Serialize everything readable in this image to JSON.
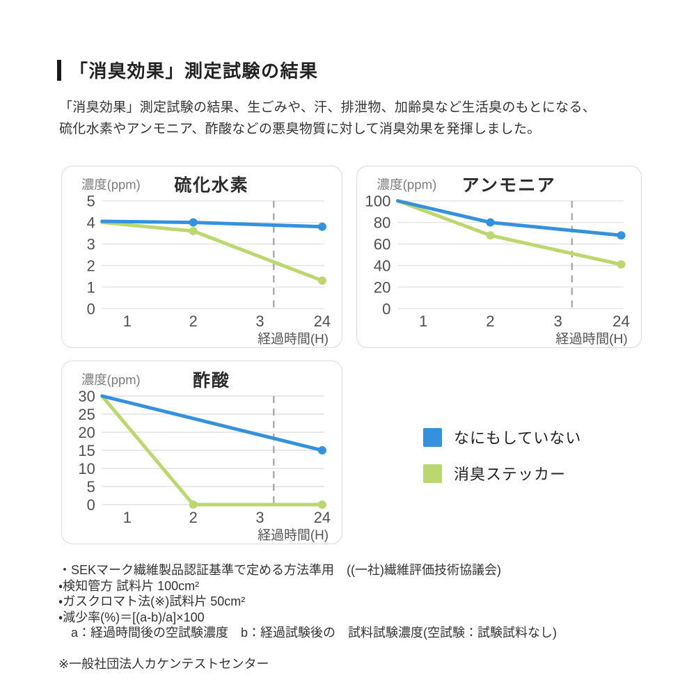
{
  "page": {
    "title": "「消臭効果」測定試験の結果",
    "intro_lines": [
      "「消臭効果」測定試験の結果、生ごみや、汗、排泄物、加齢臭など生活臭のもとになる、",
      "硫化水素やアンモニア、酢酸などの悪臭物質に対して消臭効果を発揮しました。"
    ]
  },
  "colors": {
    "blue": "#3492DC",
    "green": "#BCD76E",
    "grid": "#E2E2E2",
    "dashed": "#ABABAB",
    "panel_border": "#DBDBDB",
    "tick_text": "#4F4F4F",
    "axis_label_text": "#7D7D7D",
    "chart_title_text": "#2B2B2B"
  },
  "legend": {
    "items": [
      {
        "label": "なにもしていない",
        "color_key": "blue"
      },
      {
        "label": "消臭ステッカー",
        "color_key": "green"
      }
    ]
  },
  "chart_data": [
    {
      "type": "line",
      "title": "硫化水素",
      "ylabel": "濃度(ppm)",
      "xlabel": "経過時間(H)",
      "ylim": [
        0,
        5
      ],
      "y_ticks": [
        0,
        1,
        2,
        3,
        4,
        5
      ],
      "x_ticks": [
        1,
        2,
        3,
        24
      ],
      "grid": true,
      "axis_break_dashed_line": true,
      "series": [
        {
          "name": "なにもしていない",
          "color_key": "blue",
          "x": [
            0,
            2,
            24
          ],
          "values": [
            4.05,
            4.0,
            3.8
          ],
          "dots_at": [
            1,
            2
          ]
        },
        {
          "name": "消臭ステッカー",
          "color_key": "green",
          "x": [
            0,
            2,
            24
          ],
          "values": [
            4.0,
            3.6,
            1.3
          ],
          "dots_at": [
            1,
            2
          ]
        }
      ]
    },
    {
      "type": "line",
      "title": "アンモニア",
      "ylabel": "濃度(ppm)",
      "xlabel": "経過時間(H)",
      "ylim": [
        0,
        100
      ],
      "y_ticks": [
        0,
        20,
        40,
        60,
        80,
        100
      ],
      "x_ticks": [
        1,
        2,
        3,
        24
      ],
      "grid": true,
      "axis_break_dashed_line": true,
      "series": [
        {
          "name": "なにもしていない",
          "color_key": "blue",
          "x": [
            0,
            2,
            24
          ],
          "values": [
            100,
            80,
            68
          ],
          "dots_at": [
            1,
            2
          ]
        },
        {
          "name": "消臭ステッカー",
          "color_key": "green",
          "x": [
            0,
            2,
            24
          ],
          "values": [
            100,
            68,
            41
          ],
          "dots_at": [
            1,
            2
          ]
        }
      ]
    },
    {
      "type": "line",
      "title": "酢酸",
      "ylabel": "濃度(ppm)",
      "xlabel": "経過時間(H)",
      "ylim": [
        0,
        30
      ],
      "y_ticks": [
        0,
        5,
        10,
        15,
        20,
        25,
        30
      ],
      "x_ticks": [
        1,
        2,
        3,
        24
      ],
      "grid": true,
      "axis_break_dashed_line": true,
      "series": [
        {
          "name": "なにもしていない",
          "color_key": "blue",
          "x": [
            0,
            24
          ],
          "values": [
            30,
            15
          ],
          "dots_at": [
            1
          ]
        },
        {
          "name": "消臭ステッカー",
          "color_key": "green",
          "x": [
            0,
            2,
            24
          ],
          "values": [
            30,
            0,
            0
          ],
          "dots_at": [
            1,
            2
          ]
        }
      ]
    }
  ],
  "footnotes": {
    "lines": [
      "・SEKマーク繊維製品認証基準で定める方法準用　((一社)繊維評価技術協議会)",
      "・検知管方 試料片 100cm²",
      "・ガスクロマト法(※)試料片 50cm²",
      "・減少率(%)＝[(a-b)/a]×100",
      "　a：経過時間後の空試験濃度　b：経過試験後の　試料試験濃度(空試験：試験試料なし)"
    ],
    "center_note": "※一般社団法人カケンテストセンター"
  }
}
